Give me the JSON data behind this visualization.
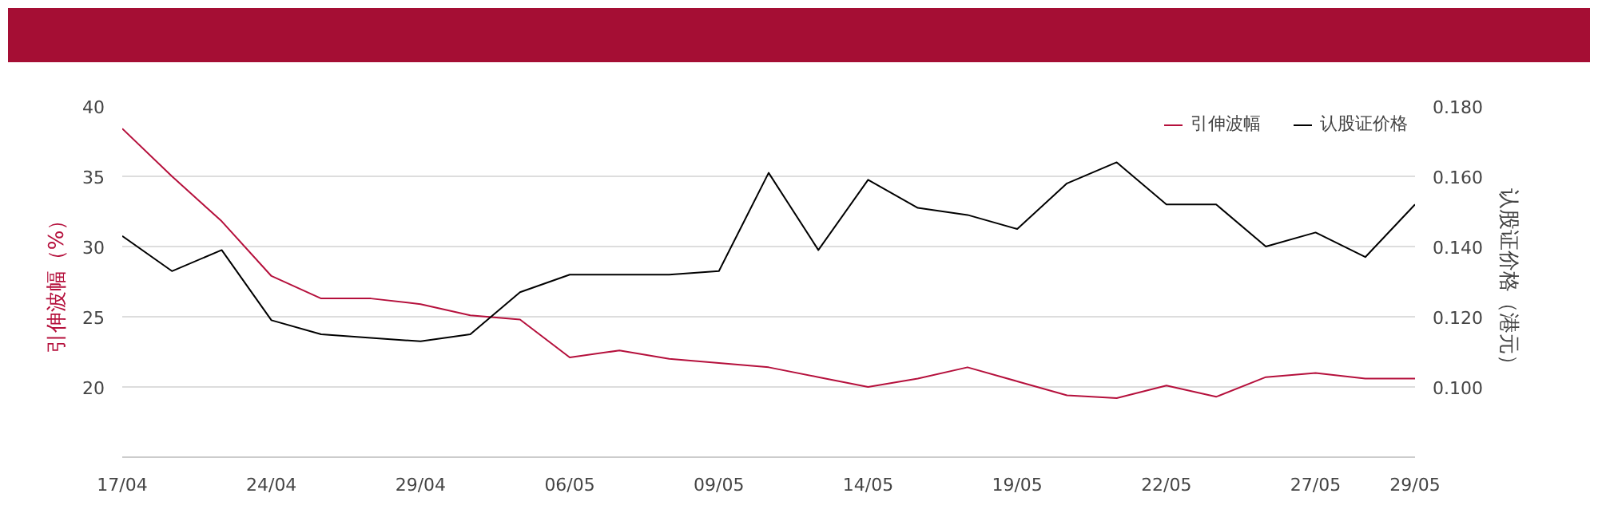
{
  "chart_data": {
    "type": "line",
    "categories": [
      "17/04",
      null,
      null,
      "24/04",
      null,
      null,
      "29/04",
      null,
      null,
      "06/05",
      null,
      null,
      "09/05",
      null,
      null,
      "14/05",
      null,
      null,
      "19/05",
      null,
      null,
      "22/05",
      null,
      null,
      "27/05",
      null,
      "29/05"
    ],
    "ylabel": "引伸波幅（%）",
    "y2label": "认股证价格（港元）",
    "ylim": [
      15,
      40
    ],
    "yticks": [
      20,
      25,
      30,
      35,
      40
    ],
    "y2lim": [
      0.08,
      0.18
    ],
    "y2ticks": [
      {
        "value": 0.1,
        "label": "0.100"
      },
      {
        "value": 0.12,
        "label": "0.120"
      },
      {
        "value": 0.14,
        "label": "0.140"
      },
      {
        "value": 0.16,
        "label": "0.160"
      },
      {
        "value": 0.18,
        "label": "0.180"
      }
    ],
    "grid": "y",
    "legend": "top right",
    "series": [
      {
        "name": "引伸波幅",
        "color": "#b5103c",
        "values": [
          38.4,
          35.0,
          31.8,
          27.9,
          26.3,
          26.3,
          25.9,
          25.1,
          24.8,
          22.1,
          22.6,
          22.0,
          21.7,
          21.4,
          20.7,
          20.0,
          20.6,
          21.4,
          20.4,
          19.4,
          19.2,
          20.1,
          19.3,
          20.7,
          21.0,
          20.6,
          20.6
        ]
      },
      {
        "name": "认股证价格",
        "color": "#000000",
        "axis": "y2",
        "values": [
          0.143,
          0.133,
          0.139,
          0.119,
          0.115,
          0.114,
          0.113,
          0.115,
          0.127,
          0.132,
          0.132,
          0.132,
          0.133,
          0.161,
          0.139,
          0.159,
          0.151,
          0.149,
          0.145,
          0.158,
          0.164,
          0.152,
          0.152,
          0.14,
          0.144,
          0.137,
          0.152
        ]
      }
    ]
  }
}
